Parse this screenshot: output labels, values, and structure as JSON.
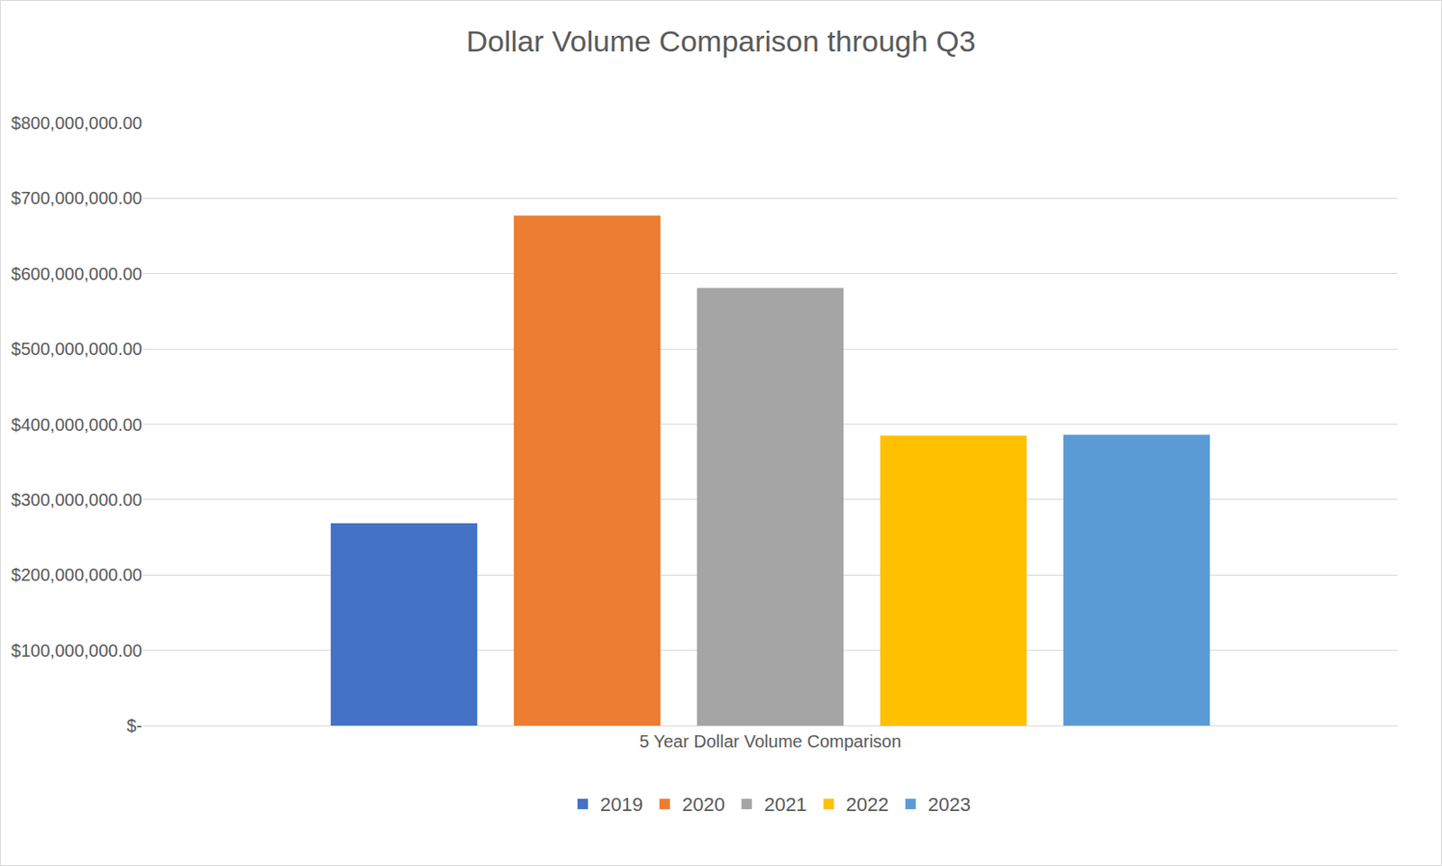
{
  "chart_data": {
    "type": "bar",
    "title": "Dollar Volume Comparison through Q3",
    "categories": [
      "5 Year Dollar Volume Comparison"
    ],
    "series": [
      {
        "name": "2019",
        "color": "#4472c4",
        "values": [
          268500000
        ]
      },
      {
        "name": "2020",
        "color": "#ed7d31",
        "values": [
          677000000
        ]
      },
      {
        "name": "2021",
        "color": "#a5a5a5",
        "values": [
          581000000
        ]
      },
      {
        "name": "2022",
        "color": "#ffc000",
        "values": [
          385000000
        ]
      },
      {
        "name": "2023",
        "color": "#5b9bd5",
        "values": [
          386000000
        ]
      }
    ],
    "ylim": [
      0,
      800000000
    ],
    "yticks": [
      {
        "value": 0,
        "label": "$-"
      },
      {
        "value": 100000000,
        "label": "$100,000,000.00"
      },
      {
        "value": 200000000,
        "label": "$200,000,000.00"
      },
      {
        "value": 300000000,
        "label": "$300,000,000.00"
      },
      {
        "value": 400000000,
        "label": "$400,000,000.00"
      },
      {
        "value": 500000000,
        "label": "$500,000,000.00"
      },
      {
        "value": 600000000,
        "label": "$600,000,000.00"
      },
      {
        "value": 700000000,
        "label": "$700,000,000.00"
      },
      {
        "value": 800000000,
        "label": "$800,000,000.00"
      }
    ],
    "grid": true,
    "legend": "bottom"
  }
}
